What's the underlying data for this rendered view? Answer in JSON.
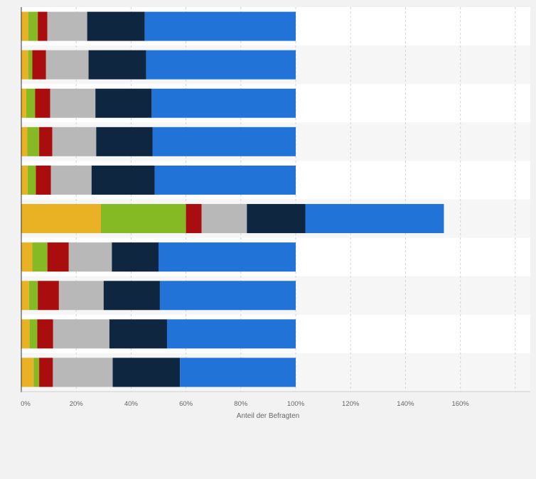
{
  "chart_data": {
    "type": "bar",
    "orientation": "horizontal",
    "stacked": true,
    "xlabel": "Anteil der Befragten",
    "ylabel": "",
    "xlim": [
      0,
      180
    ],
    "x_ticks": [
      "0%",
      "20%",
      "40%",
      "60%",
      "80%",
      "100%",
      "120%",
      "140%",
      "160%"
    ],
    "tick_values": [
      0,
      20,
      40,
      60,
      80,
      100,
      120,
      140,
      160
    ],
    "grid": true,
    "legend": "none",
    "categories": [
      "",
      "",
      "",
      "",
      "",
      "",
      "",
      "",
      "",
      ""
    ],
    "series": [
      {
        "color": "#e9b224",
        "values": [
          2.5,
          2.5,
          1.8,
          2.2,
          2.3,
          29,
          4,
          2.8,
          3,
          4.5
        ]
      },
      {
        "color": "#86ba24",
        "values": [
          3.5,
          1.5,
          3.2,
          4.3,
          3,
          31,
          5.5,
          3.2,
          2.8,
          2
        ]
      },
      {
        "color": "#aa0d0d",
        "values": [
          3.5,
          5,
          5.5,
          4.8,
          5.5,
          5.7,
          7.8,
          7.7,
          5.8,
          5
        ]
      },
      {
        "color": "#b8b8b8",
        "values": [
          14.5,
          15.5,
          16.5,
          16,
          14.8,
          16.5,
          15.7,
          16.3,
          20.5,
          21.8
        ]
      },
      {
        "color": "#0e2640",
        "values": [
          21,
          21,
          20.5,
          20.5,
          23,
          21.3,
          17,
          20.5,
          21,
          24.5
        ]
      },
      {
        "color": "#2273d8",
        "values": [
          55,
          54.5,
          52.5,
          52.2,
          51.4,
          50.5,
          50,
          49.5,
          46.9,
          42.2
        ]
      }
    ]
  }
}
